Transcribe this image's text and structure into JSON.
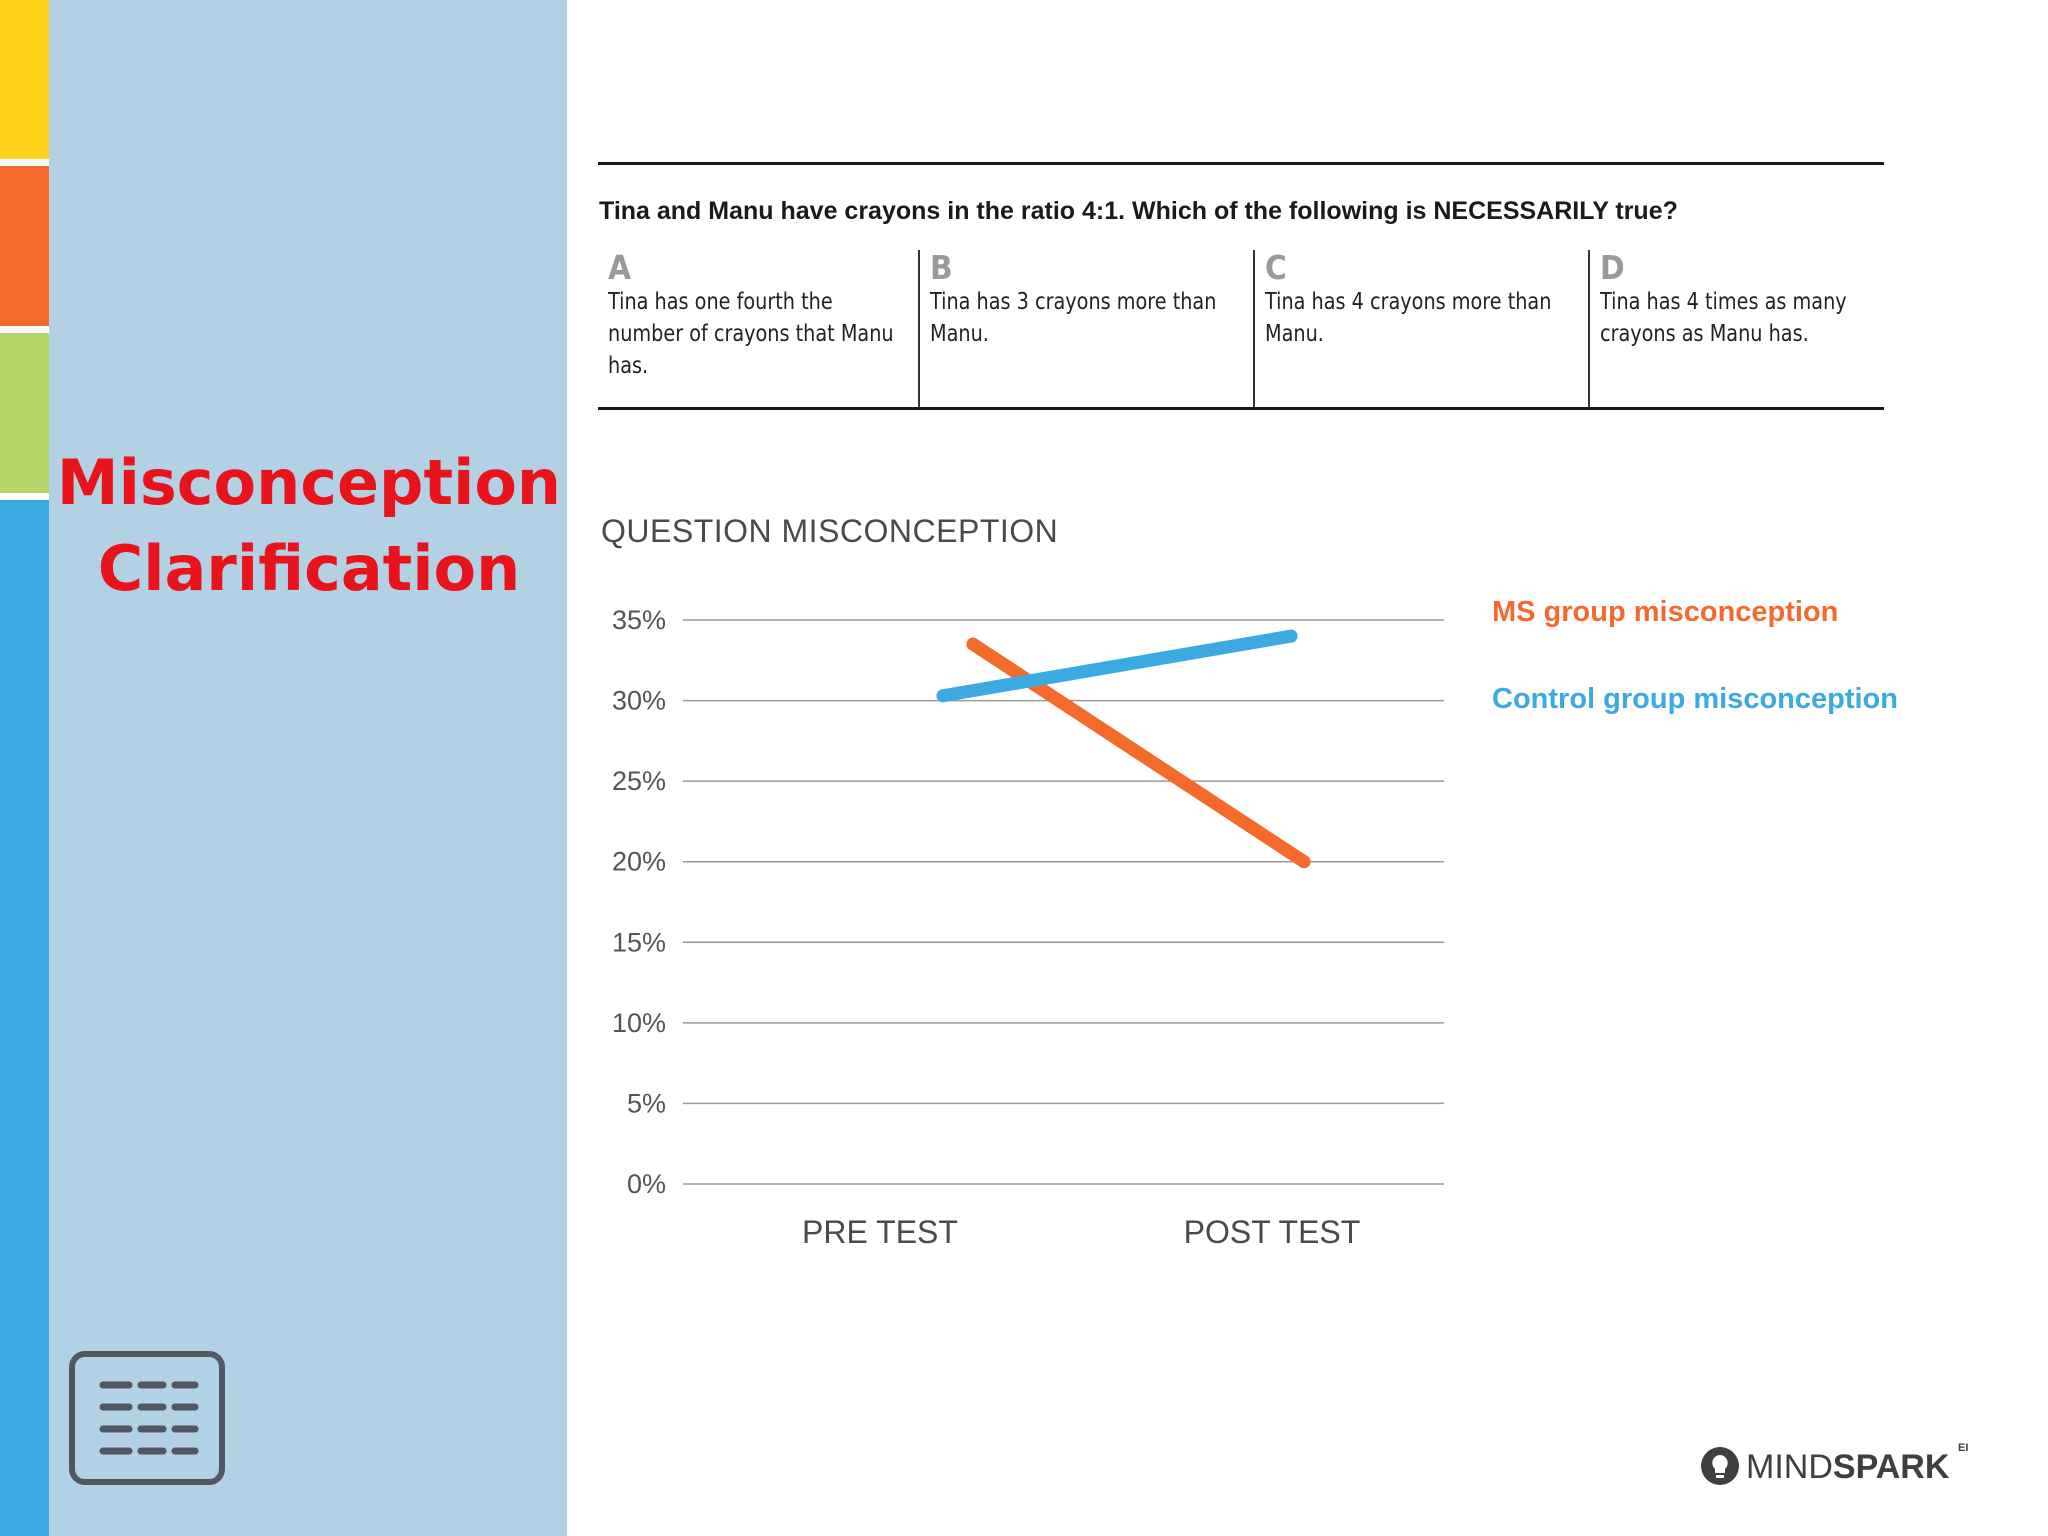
{
  "sidebar": {
    "color_strip": [
      "#ffd31c",
      "#f46a2b",
      "#b4d567",
      "#3aaae0"
    ],
    "background": "#b3d1e4",
    "title_line1": "Misconception",
    "title_line2": "Clarification",
    "title_color": "#e8131b",
    "notes_icon": "notes-list-icon"
  },
  "question": {
    "text": "Tina and Manu have crayons in the ratio 4:1. Which of the following is NECESSARILY true?",
    "options": [
      {
        "letter": "A",
        "text": "Tina has one fourth the number of crayons that Manu has."
      },
      {
        "letter": "B",
        "text": "Tina has 3 crayons more than Manu."
      },
      {
        "letter": "C",
        "text": "Tina has 4 crayons more than Manu."
      },
      {
        "letter": "D",
        "text": "Tina has 4 times as many crayons as Manu has."
      }
    ]
  },
  "chart_data": {
    "type": "line",
    "title": "QUESTION MISCONCEPTION",
    "categories": [
      "PRE TEST",
      "POST TEST"
    ],
    "y_ticks": [
      "0%",
      "5%",
      "10%",
      "15%",
      "20%",
      "25%",
      "30%",
      "35%"
    ],
    "ylim": [
      0,
      35
    ],
    "grid": true,
    "legend_position": "right",
    "series": [
      {
        "name": "MS group misconception",
        "color": "#f46a2b",
        "values": [
          33.5,
          20
        ]
      },
      {
        "name": "Control group misconception",
        "color": "#3aaae0",
        "values": [
          30.3,
          34
        ]
      }
    ]
  },
  "branding": {
    "logo_icon": "lightbulb-icon",
    "logo_light": "MIND",
    "logo_bold": "SPARK",
    "logo_sup": "EI"
  }
}
